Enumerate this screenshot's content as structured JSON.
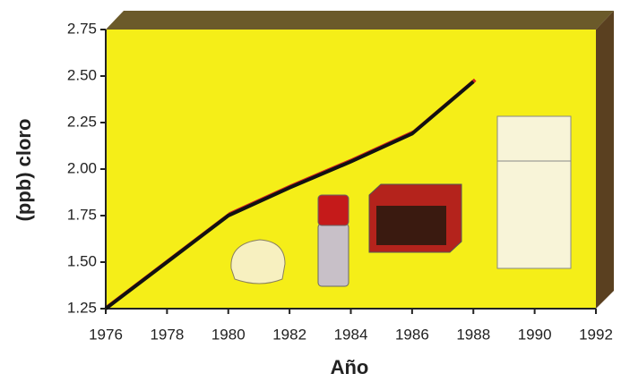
{
  "chart_data": {
    "type": "line",
    "x_label": "Año",
    "y_label": "(ppb) cloro",
    "x": [
      1976,
      1978,
      1980,
      1982,
      1984,
      1986,
      1988
    ],
    "series": [
      {
        "color": "#111111",
        "values": [
          1.25,
          1.5,
          1.75,
          1.9,
          2.04,
          2.19,
          2.47
        ]
      }
    ],
    "xlim": [
      1976,
      1992
    ],
    "xticks": [
      1976,
      1978,
      1980,
      1982,
      1984,
      1986,
      1988,
      1990,
      1992
    ],
    "ylim": [
      1.25,
      2.75
    ],
    "yticks": [
      1.25,
      {
        "value": 1.5,
        "label": "1.50"
      },
      1.75,
      {
        "value": 2.0,
        "label": "2.00"
      },
      2.25,
      {
        "value": 2.5,
        "label": "2.50"
      },
      2.75
    ],
    "background": "#f5ee18"
  }
}
